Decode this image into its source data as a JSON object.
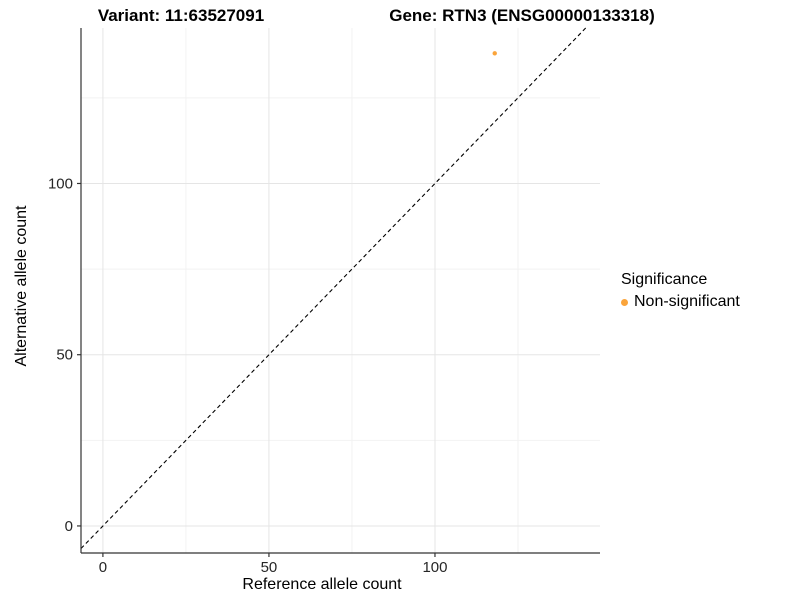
{
  "titles": {
    "variant": "Variant: 11:63527091",
    "gene": "Gene: RTN3 (ENSG00000133318)"
  },
  "chart_data": {
    "type": "scatter",
    "title": "Variant: 11:63527091 — Gene: RTN3 (ENSG00000133318)",
    "xlabel": "Reference allele count",
    "ylabel": "Alternative allele count",
    "xlim": [
      -6.6,
      149.7
    ],
    "ylim": [
      -7.9,
      145.4
    ],
    "x_ticks": [
      0,
      50,
      100
    ],
    "y_ticks": [
      0,
      50,
      100
    ],
    "x_minor_ticks": [
      25,
      75,
      125
    ],
    "y_minor_ticks": [
      25,
      75,
      125
    ],
    "grid": "major and minor gridlines on white background",
    "legend_position": "right",
    "legend_title": "Significance",
    "series": [
      {
        "name": "Non-significant",
        "color": "#FAA43B",
        "points": [
          [
            118,
            138
          ]
        ],
        "point_radius": 2.2
      }
    ],
    "identity_line": {
      "style": "dashed",
      "slope": 1,
      "intercept": 0,
      "color": "#000000"
    }
  },
  "colors": {
    "point_orange": "#FAA43B",
    "grid_major": "#E5E5E5",
    "grid_minor": "#F2F2F2",
    "axis_line": "#333333",
    "tick_text": "#262626",
    "title_text": "#000000"
  }
}
